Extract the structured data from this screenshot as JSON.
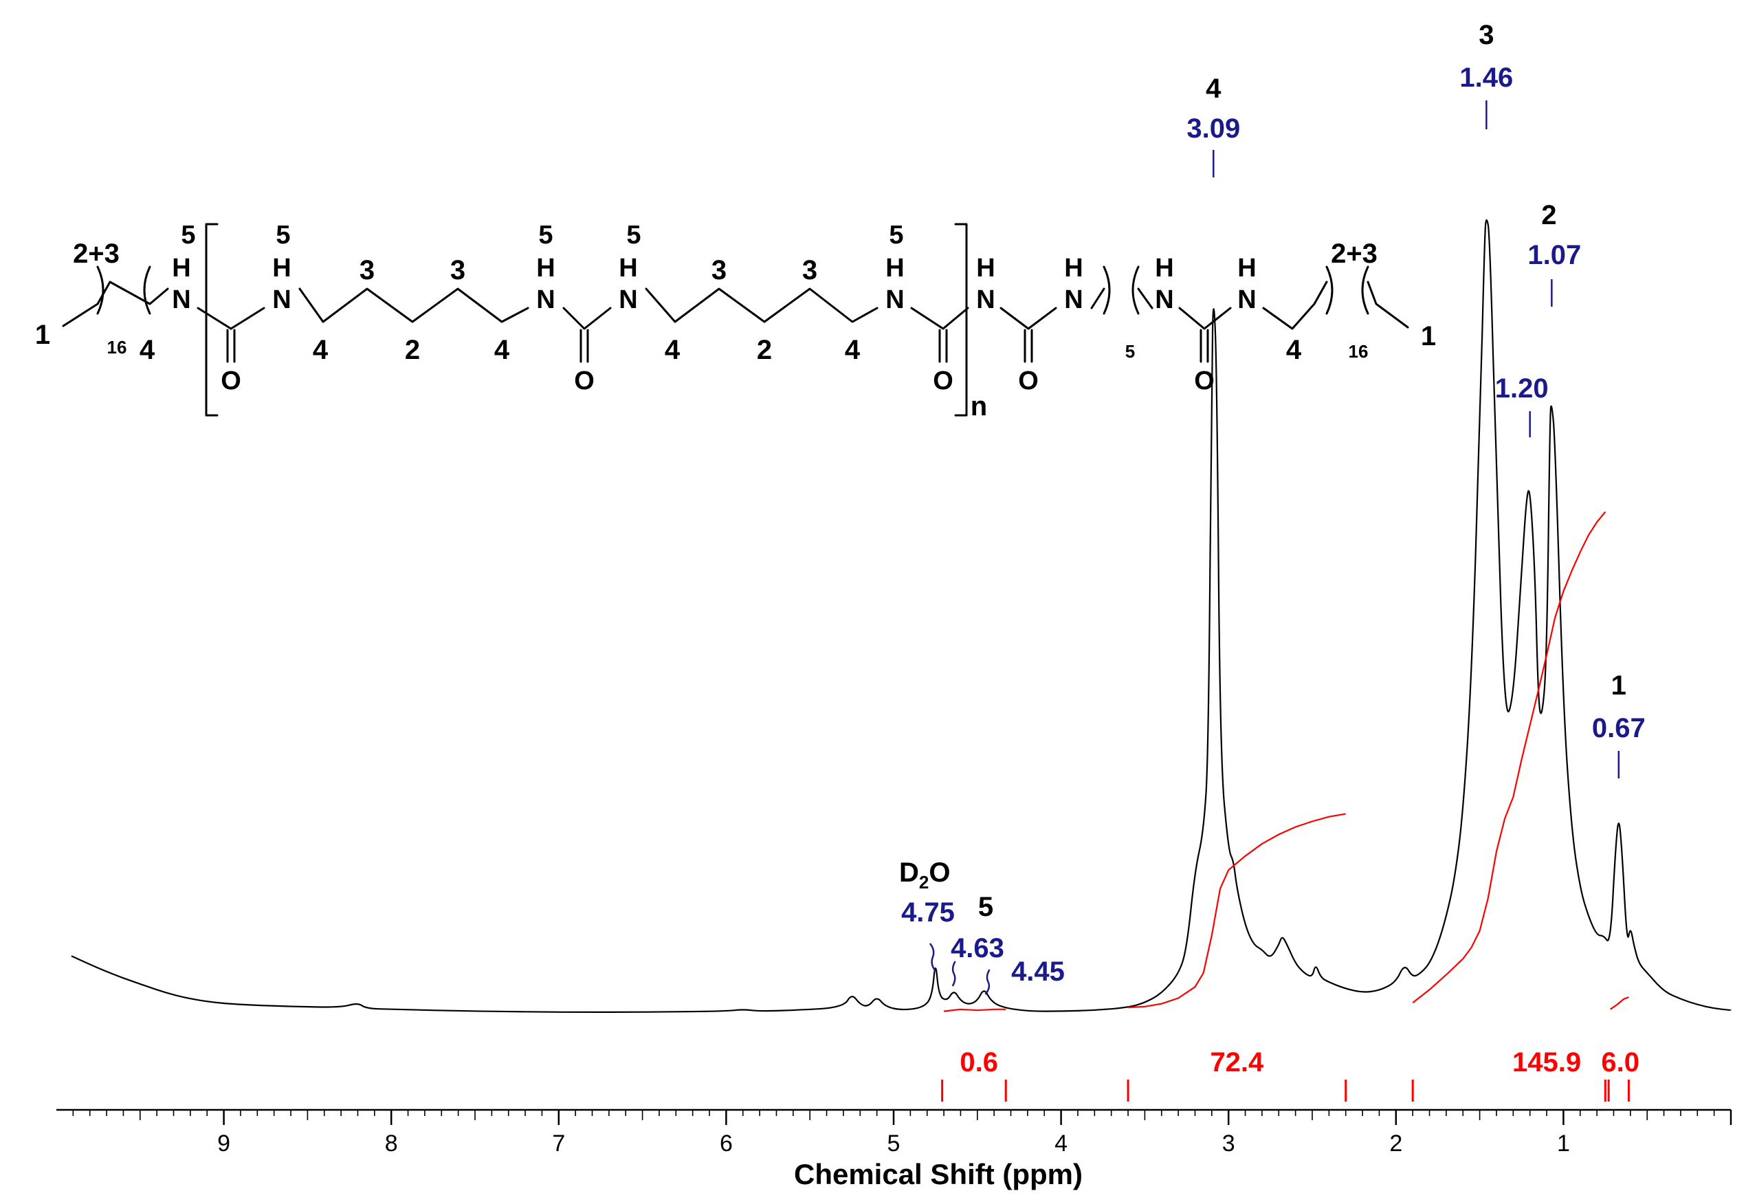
{
  "chart_data": {
    "type": "line",
    "title": "",
    "xlabel": "Chemical Shift (ppm)",
    "ylabel": "",
    "xlim": [
      10.0,
      0.0
    ],
    "x_ticks": [
      "9",
      "8",
      "7",
      "6",
      "5",
      "4",
      "3",
      "2",
      "1"
    ],
    "grid": false,
    "legend": "none",
    "colors": {
      "spectrum": "#000000",
      "integral": "#ff0000",
      "shift_label": "#1a1a8c",
      "assignment": "#000000"
    },
    "spectrum": [
      [
        9.91,
        0.088
      ],
      [
        9.7,
        0.071
      ],
      [
        9.5,
        0.058
      ],
      [
        9.3,
        0.046
      ],
      [
        9.1,
        0.039
      ],
      [
        8.9,
        0.036
      ],
      [
        8.6,
        0.034
      ],
      [
        8.3,
        0.033
      ],
      [
        8.2,
        0.038
      ],
      [
        8.15,
        0.032
      ],
      [
        8.0,
        0.031
      ],
      [
        7.5,
        0.029
      ],
      [
        7.0,
        0.028
      ],
      [
        6.5,
        0.028
      ],
      [
        6.0,
        0.029
      ],
      [
        5.9,
        0.031
      ],
      [
        5.8,
        0.029
      ],
      [
        5.6,
        0.03
      ],
      [
        5.3,
        0.033
      ],
      [
        5.25,
        0.048
      ],
      [
        5.2,
        0.036
      ],
      [
        5.15,
        0.034
      ],
      [
        5.1,
        0.045
      ],
      [
        5.05,
        0.034
      ],
      [
        4.95,
        0.03
      ],
      [
        4.82,
        0.033
      ],
      [
        4.77,
        0.045
      ],
      [
        4.75,
        0.085
      ],
      [
        4.73,
        0.045
      ],
      [
        4.68,
        0.04
      ],
      [
        4.64,
        0.052
      ],
      [
        4.6,
        0.04
      ],
      [
        4.55,
        0.036
      ],
      [
        4.5,
        0.04
      ],
      [
        4.46,
        0.054
      ],
      [
        4.42,
        0.04
      ],
      [
        4.35,
        0.033
      ],
      [
        4.2,
        0.029
      ],
      [
        4.0,
        0.029
      ],
      [
        3.8,
        0.03
      ],
      [
        3.6,
        0.033
      ],
      [
        3.5,
        0.038
      ],
      [
        3.4,
        0.048
      ],
      [
        3.3,
        0.068
      ],
      [
        3.25,
        0.095
      ],
      [
        3.2,
        0.18
      ],
      [
        3.15,
        0.22
      ],
      [
        3.12,
        0.3
      ],
      [
        3.1,
        0.72
      ],
      [
        3.09,
        0.8
      ],
      [
        3.07,
        0.72
      ],
      [
        3.05,
        0.3
      ],
      [
        3.0,
        0.2
      ],
      [
        2.97,
        0.19
      ],
      [
        2.95,
        0.16
      ],
      [
        2.9,
        0.12
      ],
      [
        2.85,
        0.1
      ],
      [
        2.8,
        0.095
      ],
      [
        2.75,
        0.085
      ],
      [
        2.7,
        0.1
      ],
      [
        2.68,
        0.11
      ],
      [
        2.65,
        0.1
      ],
      [
        2.6,
        0.08
      ],
      [
        2.55,
        0.07
      ],
      [
        2.5,
        0.065
      ],
      [
        2.48,
        0.08
      ],
      [
        2.45,
        0.065
      ],
      [
        2.4,
        0.06
      ],
      [
        2.3,
        0.053
      ],
      [
        2.2,
        0.049
      ],
      [
        2.1,
        0.051
      ],
      [
        2.0,
        0.06
      ],
      [
        1.95,
        0.08
      ],
      [
        1.9,
        0.065
      ],
      [
        1.85,
        0.07
      ],
      [
        1.8,
        0.08
      ],
      [
        1.75,
        0.1
      ],
      [
        1.7,
        0.13
      ],
      [
        1.65,
        0.17
      ],
      [
        1.6,
        0.24
      ],
      [
        1.55,
        0.38
      ],
      [
        1.5,
        0.65
      ],
      [
        1.47,
        0.86
      ],
      [
        1.46,
        0.88
      ],
      [
        1.44,
        0.86
      ],
      [
        1.4,
        0.6
      ],
      [
        1.35,
        0.34
      ],
      [
        1.3,
        0.36
      ],
      [
        1.25,
        0.5
      ],
      [
        1.22,
        0.58
      ],
      [
        1.2,
        0.59
      ],
      [
        1.17,
        0.5
      ],
      [
        1.15,
        0.36
      ],
      [
        1.13,
        0.34
      ],
      [
        1.1,
        0.4
      ],
      [
        1.08,
        0.67
      ],
      [
        1.07,
        0.68
      ],
      [
        1.05,
        0.64
      ],
      [
        1.0,
        0.35
      ],
      [
        0.95,
        0.22
      ],
      [
        0.9,
        0.16
      ],
      [
        0.85,
        0.13
      ],
      [
        0.8,
        0.11
      ],
      [
        0.76,
        0.11
      ],
      [
        0.72,
        0.1
      ],
      [
        0.69,
        0.2
      ],
      [
        0.67,
        0.24
      ],
      [
        0.65,
        0.2
      ],
      [
        0.62,
        0.1
      ],
      [
        0.6,
        0.12
      ],
      [
        0.58,
        0.1
      ],
      [
        0.55,
        0.08
      ],
      [
        0.5,
        0.07
      ],
      [
        0.4,
        0.05
      ],
      [
        0.3,
        0.042
      ],
      [
        0.2,
        0.036
      ],
      [
        0.1,
        0.032
      ],
      [
        0.0,
        0.03
      ]
    ],
    "integral_curves": [
      {
        "label": "0.6",
        "x": [
          4.7,
          4.6,
          4.5,
          4.4,
          4.33
        ],
        "y": [
          0.029,
          0.031,
          0.03,
          0.031,
          0.031
        ]
      },
      {
        "label": "72.4",
        "x": [
          3.6,
          3.5,
          3.4,
          3.3,
          3.2,
          3.15,
          3.1,
          3.05,
          3.0,
          2.9,
          2.8,
          2.7,
          2.6,
          2.5,
          2.4,
          2.3
        ],
        "y": [
          0.033,
          0.034,
          0.037,
          0.043,
          0.055,
          0.07,
          0.11,
          0.16,
          0.18,
          0.195,
          0.208,
          0.218,
          0.226,
          0.232,
          0.237,
          0.24
        ]
      },
      {
        "label": "145.9",
        "x": [
          1.9,
          1.8,
          1.7,
          1.6,
          1.55,
          1.5,
          1.45,
          1.4,
          1.35,
          1.3,
          1.25,
          1.2,
          1.15,
          1.1,
          1.05,
          1.0,
          0.95,
          0.9,
          0.85,
          0.8,
          0.75
        ],
        "y": [
          0.038,
          0.052,
          0.068,
          0.085,
          0.097,
          0.115,
          0.15,
          0.2,
          0.235,
          0.258,
          0.298,
          0.335,
          0.372,
          0.41,
          0.45,
          0.478,
          0.5,
          0.52,
          0.538,
          0.552,
          0.563
        ]
      },
      {
        "label": "6.0",
        "x": [
          0.72,
          0.68,
          0.64,
          0.61
        ],
        "y": [
          0.031,
          0.036,
          0.042,
          0.044
        ]
      }
    ],
    "integral_values": [
      "0.6",
      "72.4",
      "145.9",
      "6.0"
    ],
    "integral_value_positions_ppm": [
      4.49,
      2.95,
      1.1,
      0.66
    ],
    "integral_bound_marks_ppm": [
      4.71,
      4.33,
      3.6,
      2.3,
      1.9,
      0.75,
      0.73,
      0.61
    ],
    "peaks": [
      {
        "shift": "3.09",
        "x": 3.09,
        "y": 0.8,
        "assignment": "4"
      },
      {
        "shift": "1.46",
        "x": 1.46,
        "y": 0.88,
        "assignment": "3"
      },
      {
        "shift": "1.20",
        "x": 1.2,
        "y": 0.59,
        "assignment": ""
      },
      {
        "shift": "1.07",
        "x": 1.07,
        "y": 0.68,
        "assignment": "2"
      },
      {
        "shift": "0.67",
        "x": 0.67,
        "y": 0.24,
        "assignment": "1"
      },
      {
        "shift": "4.75",
        "x": 4.75,
        "y": 0.085,
        "assignment": "D2O"
      },
      {
        "shift": "4.63",
        "x": 4.64,
        "y": 0.052,
        "assignment": "5"
      },
      {
        "shift": "4.45",
        "x": 4.46,
        "y": 0.054,
        "assignment": ""
      }
    ],
    "annotations": {
      "d2o_main": "D",
      "d2o_sub": "2",
      "d2o_tail": "O"
    }
  },
  "structure": {
    "n": "n",
    "end_num_1": "1",
    "end_num_2_3": "2+3",
    "end_repeat": "16",
    "hexyl_repeat": "5",
    "nh": "N",
    "h": "H",
    "o": "O",
    "label_5": "5",
    "label_4": "4",
    "label_3": "3",
    "label_2": "2"
  }
}
